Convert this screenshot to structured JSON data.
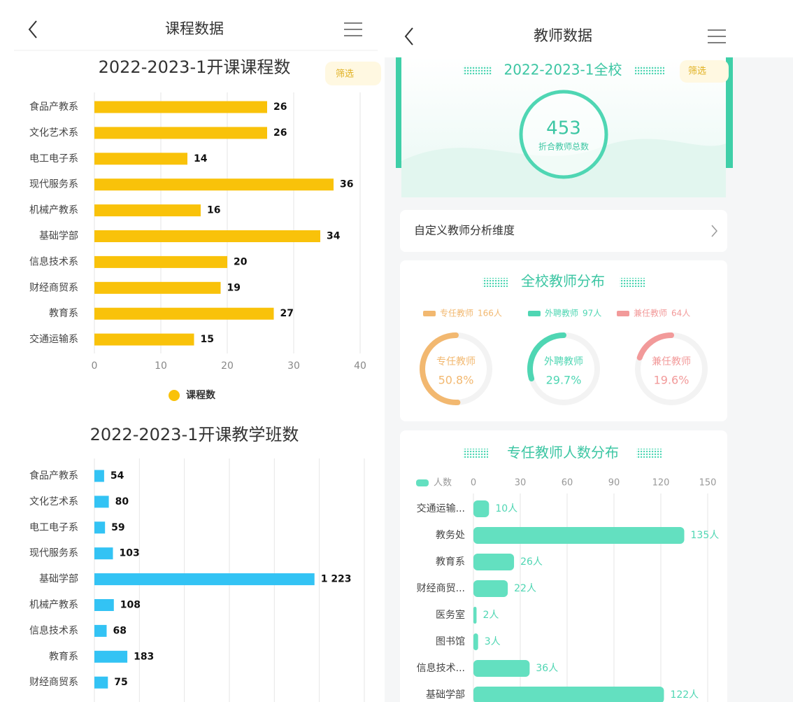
{
  "left": {
    "title": "课程数据",
    "filter": "筛选"
  },
  "right": {
    "title": "教师数据",
    "banner_title": "2022-2023-1全校",
    "filter": "筛选",
    "total": 453,
    "total_label": "折合教师总数",
    "custom_label": "自定义教师分析维度"
  },
  "chart_data": [
    {
      "type": "hbar",
      "title": "2022-2023-1开课课程数",
      "categories": [
        "食品产教系",
        "文化艺术系",
        "电工电子系",
        "现代服务系",
        "机械产教系",
        "基础学部",
        "信息技术系",
        "财经商贸系",
        "教育系",
        "交通运输系"
      ],
      "series": [
        {
          "name": "课程数",
          "color": "#f9c20a",
          "values": [
            26,
            26,
            14,
            36,
            16,
            34,
            20,
            19,
            27,
            15
          ]
        }
      ],
      "xlim": [
        0,
        40
      ],
      "xticks": [
        0,
        10,
        20,
        30,
        40
      ],
      "grid": true,
      "legend": "bottom"
    },
    {
      "type": "hbar",
      "title": "2022-2023-1开课教学班数",
      "categories": [
        "食品产教系",
        "文化艺术系",
        "电工电子系",
        "现代服务系",
        "基础学部",
        "机械产教系",
        "信息技术系",
        "教育系",
        "财经商贸系"
      ],
      "values": [
        54,
        80,
        59,
        103,
        1223,
        108,
        68,
        183,
        75
      ],
      "value_labels": [
        "54",
        "80",
        "59",
        "103",
        "1 223",
        "108",
        "68",
        "183",
        "75"
      ],
      "color": "#33c3f4",
      "xlim": [
        0,
        1500
      ],
      "xticks": [
        0,
        250,
        500,
        750,
        1000,
        1250,
        1500
      ],
      "grid": true,
      "tick_labels": false
    },
    {
      "type": "donut",
      "title": "全校教师分布",
      "categories": [
        "专任教师",
        "外聘教师",
        "兼任教师"
      ],
      "counts": [
        166,
        97,
        64
      ],
      "count_labels": [
        "166人",
        "97人",
        "64人"
      ],
      "values": [
        50.8,
        29.7,
        19.6
      ],
      "value_labels": [
        "50.8%",
        "29.7%",
        "19.6%"
      ],
      "colors": [
        "#f2b870",
        "#4fd6b3",
        "#f29a9a"
      ]
    },
    {
      "type": "hbar",
      "title": "专任教师人数分布",
      "categories": [
        "交通运输...",
        "教务处",
        "教育系",
        "财经商贸...",
        "医务室",
        "图书馆",
        "信息技术...",
        "基础学部"
      ],
      "series": [
        {
          "name": "人数",
          "color": "#63e0c0",
          "values": [
            10,
            135,
            26,
            22,
            2,
            3,
            36,
            122
          ],
          "value_labels": [
            "10人",
            "135人",
            "26人",
            "22人",
            "2人",
            "3人",
            "36人",
            "122人"
          ]
        }
      ],
      "xlim": [
        0,
        150
      ],
      "xticks": [
        0,
        30,
        60,
        90,
        120,
        150
      ],
      "grid": true,
      "legend": "top-left",
      "tick_position": "top"
    }
  ]
}
